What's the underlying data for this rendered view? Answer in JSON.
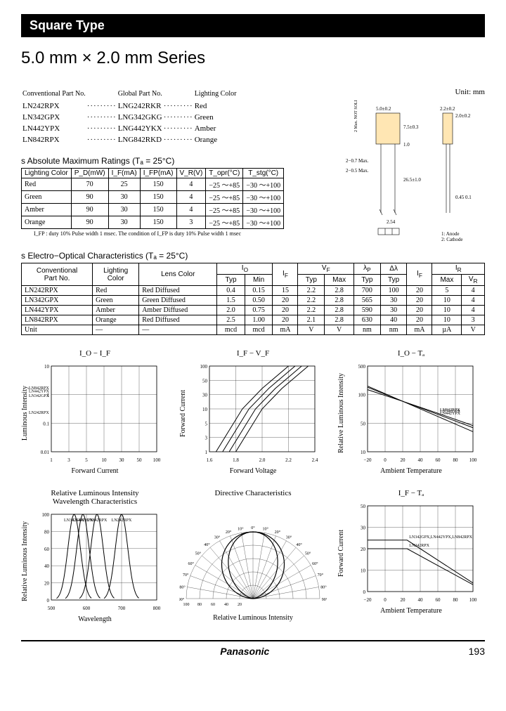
{
  "header": "Square Type",
  "title": "5.0 mm × 2.0 mm Series",
  "unit_label": "Unit: mm",
  "diagram": {
    "dims": [
      "5.0±0.2",
      "2.2±0.2",
      "2.0±0.2",
      "7.5±0.3",
      "1.0",
      "2−0.7 Max.",
      "2−0.5 Max.",
      "26.5±1.0",
      "2.54",
      "0.45",
      "0.1"
    ],
    "notdice": "2 Max. NOT SOLDERED",
    "pins": "1: Anode\n2: Cathode",
    "colors": {
      "outline": "#000",
      "fill": "#ffe6b3"
    }
  },
  "partno": {
    "headers": [
      "Conventional Part No.",
      "Global Part No.",
      "Lighting Color"
    ],
    "rows": [
      [
        "LN242RPX",
        "LNG242RKR",
        "Red"
      ],
      [
        "LN342GPX",
        "LNG342GKG",
        "Green"
      ],
      [
        "LN442YPX",
        "LNG442YKX",
        "Amber"
      ],
      [
        "LN842RPX",
        "LNG842RKD",
        "Orange"
      ]
    ]
  },
  "abs_max": {
    "title": "s  Absolute Maximum Ratings (Tₐ = 25°C)",
    "headers": [
      "Lighting Color",
      "P_D(mW)",
      "I_F(mA)",
      "I_FP(mA)",
      "V_R(V)",
      "T_opr(°C)",
      "T_stg(°C)"
    ],
    "rows": [
      [
        "Red",
        "70",
        "25",
        "150",
        "4",
        "−25 ～+85",
        "−30 ～+100"
      ],
      [
        "Green",
        "90",
        "30",
        "150",
        "4",
        "−25 ～+85",
        "−30 ～+100"
      ],
      [
        "Amber",
        "90",
        "30",
        "150",
        "4",
        "−25 ～+85",
        "−30 ～+100"
      ],
      [
        "Orange",
        "90",
        "30",
        "150",
        "3",
        "−25 ～+85",
        "−30 ～+100"
      ]
    ],
    "note": "I_FP : duty 10% Pulse width 1 msec. The condition of I_FP is duty 10% Pulse width 1 msec"
  },
  "eo": {
    "title": "s  Electro−Optical Characteristics (Tₐ = 25°C)",
    "headers_top": [
      "Conventional Part No.",
      "Lighting Color",
      "Lens Color",
      "I_O",
      "",
      "",
      "V_F",
      "",
      "λ_P",
      "Δλ",
      "",
      "I_R",
      ""
    ],
    "headers_sub": [
      "",
      "",
      "",
      "Typ",
      "Min",
      "I_F",
      "Typ",
      "Max",
      "Typ",
      "Typ",
      "I_F",
      "Max",
      "V_R"
    ],
    "rows": [
      [
        "LN242RPX",
        "Red",
        "Red Diffused",
        "0.4",
        "0.15",
        "15",
        "2.2",
        "2.8",
        "700",
        "100",
        "20",
        "5",
        "4"
      ],
      [
        "LN342GPX",
        "Green",
        "Green Diffused",
        "1.5",
        "0.50",
        "20",
        "2.2",
        "2.8",
        "565",
        "30",
        "20",
        "10",
        "4"
      ],
      [
        "LN442YPX",
        "Amber",
        "Amber Diffused",
        "2.0",
        "0.75",
        "20",
        "2.2",
        "2.8",
        "590",
        "30",
        "20",
        "10",
        "4"
      ],
      [
        "LN842RPX",
        "Orange",
        "Red Diffused",
        "2.5",
        "1.00",
        "20",
        "2.1",
        "2.8",
        "630",
        "40",
        "20",
        "10",
        "3"
      ],
      [
        "Unit",
        "—",
        "—",
        "mcd",
        "mcd",
        "mA",
        "V",
        "V",
        "nm",
        "nm",
        "mA",
        "µA",
        "V"
      ]
    ]
  },
  "charts": {
    "c1": {
      "title": "I_O − I_F",
      "xlabel": "Forward Current",
      "ylabel": "Luminous Intensity",
      "xticks": [
        "1",
        "3",
        "5",
        "10",
        "30",
        "50",
        "100"
      ],
      "yticks": [
        "0.01",
        "0.1",
        "1",
        "10"
      ],
      "xrange": [
        0,
        100
      ],
      "yrange": [
        0.01,
        10
      ],
      "log": "both",
      "series": [
        {
          "label": "LN342GPX",
          "pts": [
            [
              1,
              0.02
            ],
            [
              3,
              0.12
            ],
            [
              10,
              0.7
            ],
            [
              30,
              3
            ],
            [
              100,
              10
            ]
          ]
        },
        {
          "label": "LN442YPX",
          "pts": [
            [
              1,
              0.03
            ],
            [
              3,
              0.18
            ],
            [
              10,
              1.0
            ],
            [
              30,
              4
            ],
            [
              100,
              10
            ]
          ]
        },
        {
          "label": "LN842RPX",
          "pts": [
            [
              1,
              0.04
            ],
            [
              3,
              0.22
            ],
            [
              10,
              1.3
            ],
            [
              30,
              5
            ],
            [
              100,
              10
            ]
          ]
        },
        {
          "label": "LN242RPX",
          "pts": [
            [
              1,
              0.012
            ],
            [
              3,
              0.04
            ],
            [
              10,
              0.18
            ],
            [
              30,
              0.8
            ],
            [
              100,
              3
            ]
          ]
        }
      ]
    },
    "c2": {
      "title": "I_F − V_F",
      "xlabel": "Forward Voltage",
      "ylabel": "Forward Current",
      "xticks": [
        "1.6",
        "1.8",
        "2.0",
        "2.2",
        "2.4"
      ],
      "yticks": [
        "1",
        "3",
        "5",
        "10",
        "30",
        "50",
        "100"
      ],
      "xrange": [
        1.6,
        2.4
      ],
      "yrange": [
        1,
        100
      ],
      "log": "y",
      "series": [
        {
          "pts": [
            [
              1.65,
              1
            ],
            [
              1.85,
              10
            ],
            [
              2.0,
              30
            ],
            [
              2.2,
              100
            ]
          ]
        },
        {
          "pts": [
            [
              1.7,
              1
            ],
            [
              1.9,
              10
            ],
            [
              2.05,
              30
            ],
            [
              2.25,
              100
            ]
          ]
        },
        {
          "pts": [
            [
              1.75,
              1
            ],
            [
              1.95,
              10
            ],
            [
              2.1,
              30
            ],
            [
              2.3,
              100
            ]
          ]
        },
        {
          "pts": [
            [
              1.8,
              1
            ],
            [
              2.0,
              10
            ],
            [
              2.15,
              30
            ],
            [
              2.35,
              100
            ]
          ]
        }
      ]
    },
    "c3": {
      "title": "I_O − Tₐ",
      "xlabel": "Ambient Temperature",
      "ylabel": "Relative Luminous Intensity",
      "xticks": [
        "−20",
        "0",
        "20",
        "40",
        "60",
        "80",
        "100"
      ],
      "yticks": [
        "10",
        "50",
        "100",
        "500"
      ],
      "xrange": [
        -20,
        100
      ],
      "yrange": [
        10,
        500
      ],
      "log": "y",
      "series": [
        {
          "label": "LN342GPX",
          "pts": [
            [
              -20,
              200
            ],
            [
              20,
              100
            ],
            [
              60,
              55
            ],
            [
              100,
              30
            ]
          ]
        },
        {
          "label": "LN442YPX",
          "pts": [
            [
              -20,
              190
            ],
            [
              20,
              100
            ],
            [
              60,
              50
            ],
            [
              100,
              25
            ]
          ]
        },
        {
          "label": "LN842RPX",
          "pts": [
            [
              -20,
              170
            ],
            [
              20,
              100
            ],
            [
              60,
              58
            ],
            [
              100,
              33
            ]
          ]
        }
      ]
    },
    "c4": {
      "title": "Relative Luminous Intensity\nWavelength Characteristics",
      "xlabel": "Wavelength",
      "ylabel": "Relative Luminous Intensity",
      "xticks": [
        "500",
        "600",
        "700",
        "800"
      ],
      "yticks": [
        "0",
        "20",
        "40",
        "60",
        "80",
        "100"
      ],
      "xrange": [
        500,
        800
      ],
      "yrange": [
        0,
        100
      ],
      "series": [
        {
          "label": "LN342GPX",
          "peak": 565
        },
        {
          "label": "LN442YPX",
          "peak": 590
        },
        {
          "label": "LN842RPX",
          "peak": 630
        },
        {
          "label": "LN242RPX",
          "peak": 700
        }
      ]
    },
    "c5": {
      "title": "Directive Characteristics",
      "xlabel": "Relative Luminous Intensity",
      "angles": [
        "0°",
        "10°",
        "20°",
        "30°",
        "40°",
        "50°",
        "60°",
        "70°",
        "80°",
        "90°"
      ],
      "rticks": [
        "20",
        "40",
        "60",
        "80",
        "100"
      ]
    },
    "c6": {
      "title": "I_F − Tₐ",
      "xlabel": "Ambient Temperature",
      "ylabel": "Forward Current",
      "xticks": [
        "−20",
        "0",
        "20",
        "40",
        "60",
        "80",
        "100"
      ],
      "yticks": [
        "0",
        "10",
        "20",
        "30",
        "50"
      ],
      "xrange": [
        -20,
        100
      ],
      "yrange": [
        0,
        50
      ],
      "series": [
        {
          "label": "LN342GPX,LN442YPX,LN842RPX",
          "pts": [
            [
              -20,
              30
            ],
            [
              25,
              30
            ],
            [
              100,
              5
            ]
          ]
        },
        {
          "label": "LN242RPX",
          "pts": [
            [
              -20,
              25
            ],
            [
              25,
              25
            ],
            [
              100,
              4
            ]
          ]
        }
      ]
    }
  },
  "footer": {
    "brand": "Panasonic",
    "page": "193"
  }
}
